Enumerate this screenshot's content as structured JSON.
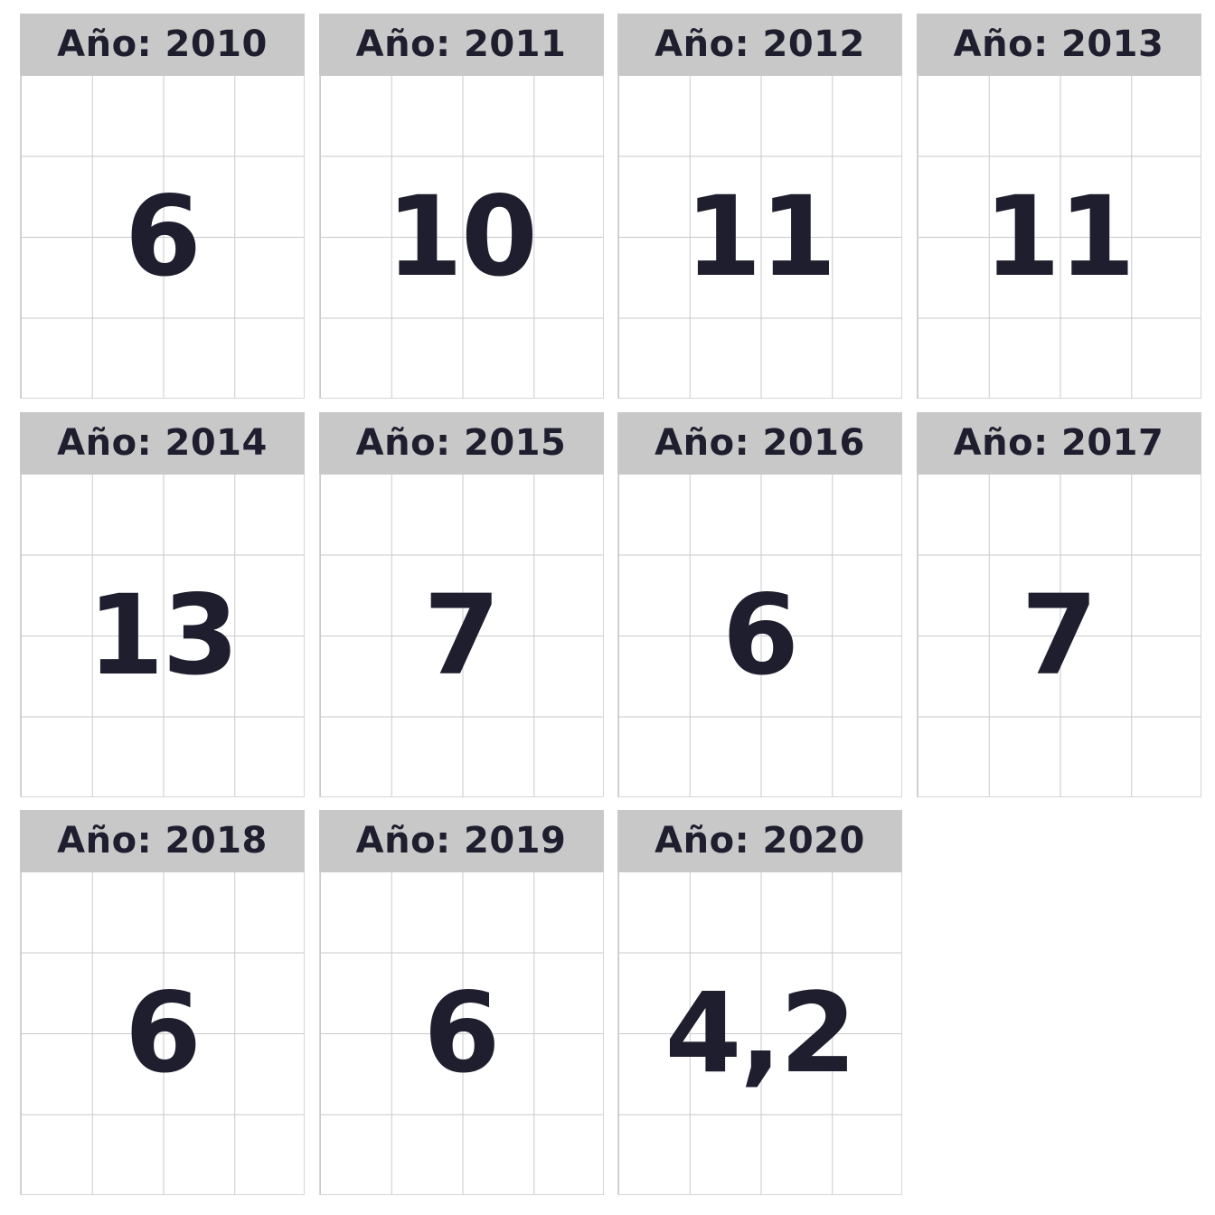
{
  "chart_data": {
    "type": "table",
    "panel_label_prefix": "Año: ",
    "panels": [
      {
        "year": "2010",
        "value": "6"
      },
      {
        "year": "2011",
        "value": "10"
      },
      {
        "year": "2012",
        "value": "11"
      },
      {
        "year": "2013",
        "value": "11"
      },
      {
        "year": "2014",
        "value": "13"
      },
      {
        "year": "2015",
        "value": "7"
      },
      {
        "year": "2016",
        "value": "6"
      },
      {
        "year": "2017",
        "value": "7"
      },
      {
        "year": "2018",
        "value": "6"
      },
      {
        "year": "2019",
        "value": "6"
      },
      {
        "year": "2020",
        "value": "4,2"
      }
    ],
    "grid": true
  },
  "colors": {
    "header_bg": "#c8c8c8",
    "text": "#1e1e2e",
    "gridline": "#8a8a95",
    "background": "#ffffff"
  }
}
